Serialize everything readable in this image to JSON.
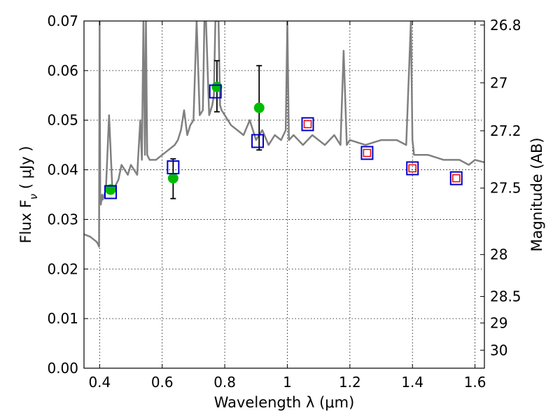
{
  "chart_data": {
    "type": "scatter",
    "xlabel": "Wavelength  λ (μm)",
    "ylabel": "Flux  F_ν  ( μJy )",
    "ylabel_right": "Magnitude (AB)",
    "xlim": [
      0.35,
      1.63
    ],
    "ylim": [
      0.0,
      0.07
    ],
    "grid": true,
    "x_ticks": [
      {
        "value": 0.4,
        "label": "0.4"
      },
      {
        "value": 0.6,
        "label": "0.6"
      },
      {
        "value": 0.8,
        "label": "0.8"
      },
      {
        "value": 1.0,
        "label": "1"
      },
      {
        "value": 1.2,
        "label": "1.2"
      },
      {
        "value": 1.4,
        "label": "1.4"
      },
      {
        "value": 1.6,
        "label": "1.6"
      }
    ],
    "y_ticks": [
      {
        "value": 0.0,
        "label": "0.00"
      },
      {
        "value": 0.01,
        "label": "0.01"
      },
      {
        "value": 0.02,
        "label": "0.02"
      },
      {
        "value": 0.03,
        "label": "0.03"
      },
      {
        "value": 0.04,
        "label": "0.04"
      },
      {
        "value": 0.05,
        "label": "0.05"
      },
      {
        "value": 0.06,
        "label": "0.06"
      },
      {
        "value": 0.07,
        "label": "0.07"
      }
    ],
    "right_ticks": [
      {
        "mag": 26.8,
        "label": "26.8"
      },
      {
        "mag": 27.0,
        "label": "27"
      },
      {
        "mag": 27.2,
        "label": "27.2"
      },
      {
        "mag": 27.5,
        "label": "27.5"
      },
      {
        "mag": 28.0,
        "label": "28"
      },
      {
        "mag": 28.5,
        "label": "28.5"
      },
      {
        "mag": 29.0,
        "label": "29"
      },
      {
        "mag": 30.0,
        "label": "30"
      }
    ],
    "series": [
      {
        "kind": "line",
        "color": "#808080",
        "x": [
          0.35,
          0.37,
          0.38,
          0.39,
          0.395,
          0.398,
          0.4,
          0.402,
          0.404,
          0.406,
          0.408,
          0.41,
          0.42,
          0.43,
          0.44,
          0.445,
          0.448,
          0.452,
          0.46,
          0.47,
          0.48,
          0.49,
          0.5,
          0.52,
          0.53,
          0.535,
          0.54,
          0.545,
          0.548,
          0.552,
          0.56,
          0.58,
          0.6,
          0.62,
          0.64,
          0.65,
          0.66,
          0.67,
          0.68,
          0.69,
          0.7,
          0.71,
          0.72,
          0.73,
          0.735,
          0.74,
          0.75,
          0.76,
          0.765,
          0.77,
          0.78,
          0.785,
          0.79,
          0.8,
          0.81,
          0.82,
          0.84,
          0.86,
          0.88,
          0.9,
          0.92,
          0.94,
          0.96,
          0.98,
          0.995,
          1.0,
          1.005,
          1.02,
          1.05,
          1.08,
          1.1,
          1.12,
          1.15,
          1.17,
          1.18,
          1.19,
          1.2,
          1.25,
          1.3,
          1.35,
          1.38,
          1.395,
          1.4,
          1.405,
          1.42,
          1.45,
          1.5,
          1.55,
          1.58,
          1.6,
          1.63
        ],
        "y": [
          0.027,
          0.0265,
          0.026,
          0.0255,
          0.025,
          0.0245,
          0.07,
          0.034,
          0.033,
          0.034,
          0.035,
          0.034,
          0.036,
          0.051,
          0.037,
          0.036,
          0.036,
          0.037,
          0.038,
          0.041,
          0.04,
          0.039,
          0.041,
          0.039,
          0.05,
          0.042,
          0.07,
          0.043,
          0.07,
          0.043,
          0.042,
          0.042,
          0.043,
          0.044,
          0.045,
          0.046,
          0.048,
          0.052,
          0.047,
          0.049,
          0.05,
          0.07,
          0.051,
          0.052,
          0.07,
          0.07,
          0.051,
          0.053,
          0.055,
          0.07,
          0.07,
          0.053,
          0.052,
          0.051,
          0.05,
          0.049,
          0.048,
          0.047,
          0.05,
          0.046,
          0.048,
          0.045,
          0.047,
          0.046,
          0.048,
          0.07,
          0.046,
          0.047,
          0.045,
          0.047,
          0.046,
          0.045,
          0.047,
          0.045,
          0.064,
          0.045,
          0.046,
          0.045,
          0.046,
          0.046,
          0.045,
          0.07,
          0.046,
          0.043,
          0.043,
          0.043,
          0.042,
          0.042,
          0.041,
          0.042,
          0.0415
        ]
      },
      {
        "kind": "points",
        "marker": "circle",
        "color": "#00bb00",
        "points": [
          {
            "x": 0.435,
            "y": 0.036
          },
          {
            "x": 0.635,
            "y": 0.0383,
            "err": [
              0.0342,
              0.0422
            ]
          },
          {
            "x": 0.775,
            "y": 0.0567,
            "err": [
              0.0517,
              0.062
            ]
          },
          {
            "x": 0.91,
            "y": 0.0525,
            "err": [
              0.044,
              0.061
            ]
          }
        ]
      },
      {
        "kind": "points",
        "marker": "square-open",
        "color": "#0000cc",
        "points": [
          {
            "x": 0.435,
            "y": 0.0355
          },
          {
            "x": 0.635,
            "y": 0.0405
          },
          {
            "x": 0.77,
            "y": 0.0558
          },
          {
            "x": 0.905,
            "y": 0.0458
          },
          {
            "x": 1.065,
            "y": 0.0492
          },
          {
            "x": 1.255,
            "y": 0.0434
          },
          {
            "x": 1.4,
            "y": 0.0403
          },
          {
            "x": 1.54,
            "y": 0.0383
          }
        ]
      },
      {
        "kind": "points",
        "marker": "square-open-small",
        "color": "#ee0000",
        "points": [
          {
            "x": 1.065,
            "y": 0.0492
          },
          {
            "x": 1.255,
            "y": 0.0434
          },
          {
            "x": 1.4,
            "y": 0.0403
          },
          {
            "x": 1.54,
            "y": 0.0383
          }
        ]
      }
    ]
  }
}
